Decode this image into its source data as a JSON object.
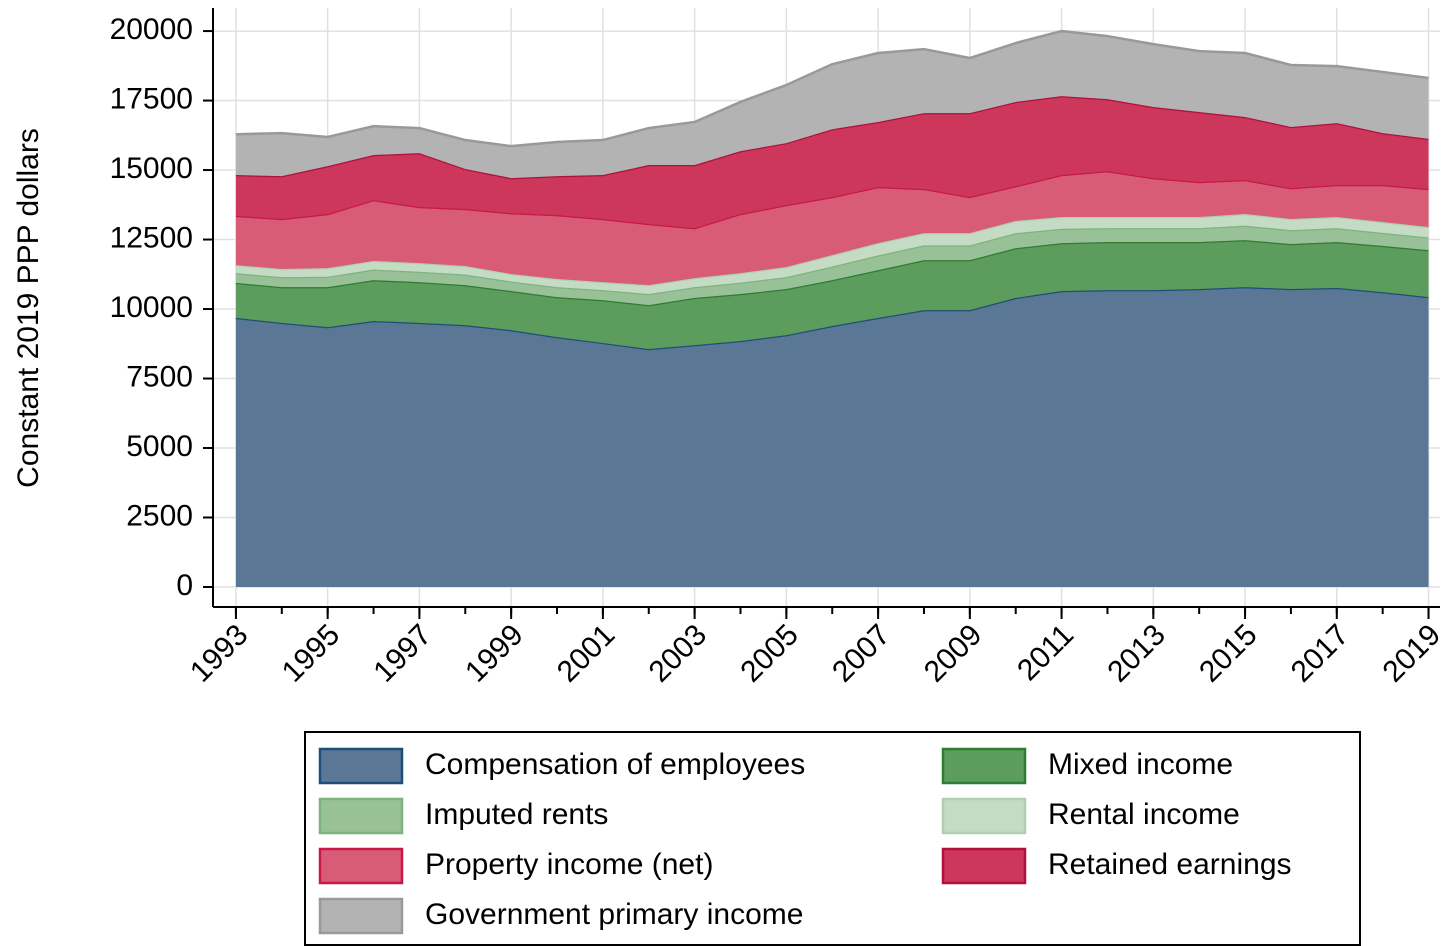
{
  "chart_data": {
    "type": "stacked_area",
    "y_label": "Constant 2019 PPP dollars",
    "x": [
      1993,
      1994,
      1995,
      1996,
      1997,
      1998,
      1999,
      2000,
      2001,
      2002,
      2003,
      2004,
      2005,
      2006,
      2007,
      2008,
      2009,
      2010,
      2011,
      2012,
      2013,
      2014,
      2015,
      2016,
      2017,
      2018,
      2019
    ],
    "xlim": [
      1992.5,
      2019.25
    ],
    "xticks": [
      1993,
      1995,
      1997,
      1999,
      2001,
      2003,
      2005,
      2007,
      2009,
      2011,
      2013,
      2015,
      2017,
      2019
    ],
    "ylim": [
      -720,
      20830
    ],
    "yticks": [
      0,
      2500,
      5000,
      7500,
      10000,
      12500,
      15000,
      17500,
      20000
    ],
    "grid": true,
    "series": [
      {
        "name": "Compensation of employees",
        "color": "#5a7896",
        "stroke": "#1f4e79",
        "values": [
          9680,
          9500,
          9350,
          9570,
          9500,
          9420,
          9240,
          8990,
          8780,
          8560,
          8700,
          8850,
          9060,
          9390,
          9680,
          9960,
          9960,
          10400,
          10650,
          10680,
          10680,
          10720,
          10790,
          10720,
          10760,
          10610,
          10430
        ]
      },
      {
        "name": "Mixed income",
        "color": "#5c9c5c",
        "stroke": "#2e7d32",
        "values": [
          1260,
          1290,
          1440,
          1470,
          1470,
          1440,
          1410,
          1440,
          1540,
          1580,
          1700,
          1690,
          1660,
          1650,
          1720,
          1800,
          1800,
          1790,
          1720,
          1730,
          1730,
          1690,
          1690,
          1620,
          1650,
          1660,
          1690
        ]
      },
      {
        "name": "Imputed rents",
        "color": "#98c198",
        "stroke": "#7fb37f",
        "values": [
          350,
          360,
          370,
          380,
          370,
          380,
          340,
          360,
          360,
          400,
          390,
          410,
          430,
          490,
          530,
          530,
          530,
          540,
          520,
          500,
          500,
          500,
          520,
          500,
          500,
          470,
          460
        ]
      },
      {
        "name": "Rental income",
        "color": "#c3dcc3",
        "stroke": "#b0d0b0",
        "values": [
          290,
          290,
          310,
          310,
          310,
          310,
          270,
          290,
          290,
          320,
          320,
          340,
          360,
          410,
          440,
          440,
          440,
          440,
          420,
          400,
          400,
          400,
          420,
          400,
          400,
          390,
          370
        ]
      },
      {
        "name": "Property income (net)",
        "color": "#d95c76",
        "stroke": "#c8184a",
        "values": [
          1770,
          1800,
          1950,
          2190,
          2020,
          2050,
          2190,
          2300,
          2270,
          2200,
          1800,
          2130,
          2230,
          2090,
          2020,
          1590,
          1300,
          1250,
          1510,
          1650,
          1400,
          1260,
          1220,
          1110,
          1150,
          1330,
          1370
        ]
      },
      {
        "name": "Retained earnings",
        "color": "#cc375b",
        "stroke": "#b0103c",
        "values": [
          1470,
          1540,
          1720,
          1620,
          1940,
          1440,
          1260,
          1400,
          1580,
          2120,
          2270,
          2260,
          2230,
          2440,
          2340,
          2730,
          3020,
          3030,
          2840,
          2590,
          2560,
          2520,
          2270,
          2200,
          2230,
          1870,
          1800
        ]
      },
      {
        "name": "Government primary income",
        "color": "#b3b3b3",
        "stroke": "#999999",
        "values": [
          1470,
          1550,
          1050,
          1040,
          900,
          1040,
          1150,
          1230,
          1260,
          1330,
          1550,
          1770,
          2090,
          2340,
          2480,
          2300,
          1980,
          2120,
          2340,
          2270,
          2260,
          2190,
          2300,
          2230,
          2050,
          2200,
          2190
        ]
      }
    ]
  }
}
